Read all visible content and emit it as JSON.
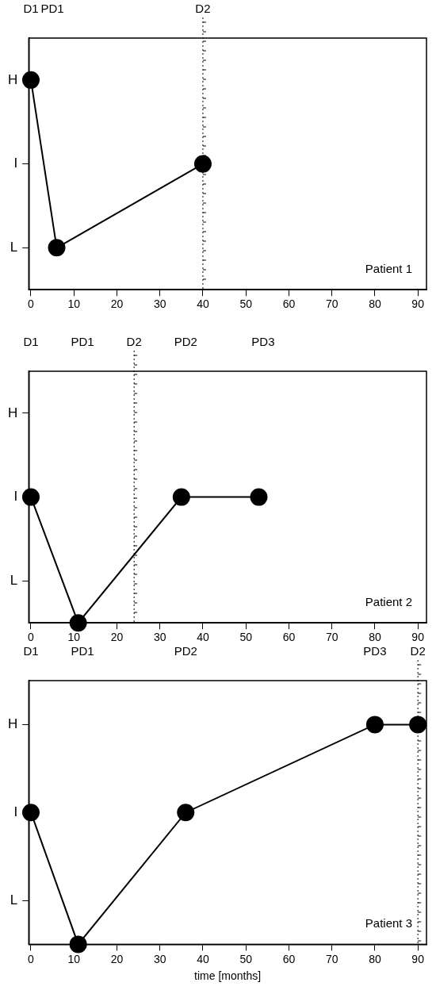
{
  "chart_data": [
    {
      "type": "line",
      "title": "Patient 1",
      "x": [
        0,
        6,
        40
      ],
      "values": [
        3,
        1,
        2
      ],
      "color": "#000000",
      "marker": "circle",
      "line_style": "solid",
      "xlim": [
        -0.5,
        92
      ],
      "xticks": [
        0,
        10,
        20,
        30,
        40,
        50,
        60,
        70,
        80,
        90
      ],
      "ylim": [
        0.5,
        3.5
      ],
      "yticks": [
        {
          "value": 3,
          "label": "H"
        },
        {
          "value": 2,
          "label": "I"
        },
        {
          "value": 1,
          "label": "L"
        }
      ],
      "grid": false,
      "events": [
        {
          "label": "D1",
          "x": 0
        },
        {
          "label": "PD1",
          "x": 5
        },
        {
          "label": "D2",
          "x": 40,
          "line_style": "dotted"
        }
      ]
    },
    {
      "type": "line",
      "title": "Patient 2",
      "x": [
        0,
        11,
        35,
        53
      ],
      "values": [
        2,
        0.5,
        2,
        2
      ],
      "color": "#000000",
      "marker": "circle",
      "line_style": "solid",
      "xlim": [
        -0.5,
        92
      ],
      "xticks": [
        0,
        10,
        20,
        30,
        40,
        50,
        60,
        70,
        80,
        90
      ],
      "ylim": [
        0.5,
        3.5
      ],
      "yticks": [
        {
          "value": 3,
          "label": "H"
        },
        {
          "value": 2,
          "label": "I"
        },
        {
          "value": 1,
          "label": "L"
        }
      ],
      "grid": false,
      "events": [
        {
          "label": "D1",
          "x": 0
        },
        {
          "label": "PD1",
          "x": 12
        },
        {
          "label": "D2",
          "x": 24,
          "line_style": "dotted"
        },
        {
          "label": "PD2",
          "x": 36
        },
        {
          "label": "PD3",
          "x": 54
        }
      ]
    },
    {
      "type": "line",
      "title": "Patient 3",
      "x_label": "time [months]",
      "x": [
        0,
        11,
        36,
        80,
        90
      ],
      "values": [
        2,
        0.5,
        2,
        3,
        3
      ],
      "color": "#000000",
      "marker": "circle",
      "line_style": "solid",
      "xlim": [
        -0.5,
        92
      ],
      "xticks": [
        0,
        10,
        20,
        30,
        40,
        50,
        60,
        70,
        80,
        90
      ],
      "ylim": [
        0.5,
        3.5
      ],
      "yticks": [
        {
          "value": 3,
          "label": "H"
        },
        {
          "value": 2,
          "label": "I"
        },
        {
          "value": 1,
          "label": "L"
        }
      ],
      "grid": false,
      "events": [
        {
          "label": "D1",
          "x": 0
        },
        {
          "label": "PD1",
          "x": 12
        },
        {
          "label": "PD2",
          "x": 36
        },
        {
          "label": "PD3",
          "x": 80
        },
        {
          "label": "D2",
          "x": 90,
          "line_style": "dotted"
        }
      ]
    }
  ]
}
